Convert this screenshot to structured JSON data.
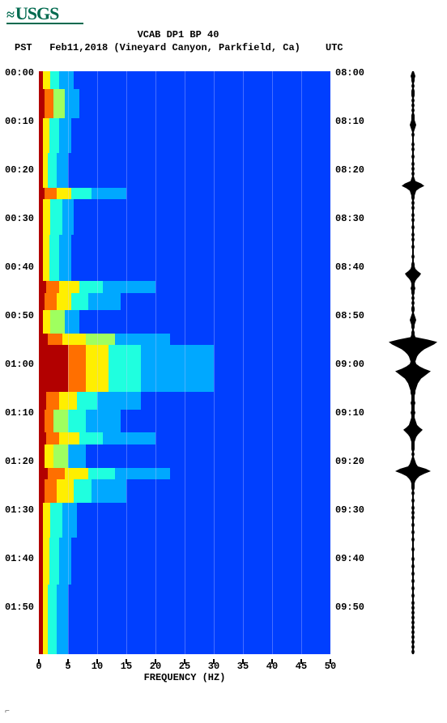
{
  "logo_text": "USGS",
  "title": "VCAB DP1 BP 40",
  "subtitle_pst": "PST",
  "subtitle_date": "Feb11,2018 (Vineyard Canyon, Parkfield, Ca)",
  "subtitle_utc": "UTC",
  "x_axis_title": "FREQUENCY (HZ)",
  "x_ticks": [
    "0",
    "5",
    "10",
    "15",
    "20",
    "25",
    "30",
    "35",
    "40",
    "45",
    "50"
  ],
  "left_ticks": [
    "00:00",
    "00:10",
    "00:20",
    "00:30",
    "00:40",
    "00:50",
    "01:00",
    "01:10",
    "01:20",
    "01:30",
    "01:40",
    "01:50"
  ],
  "right_ticks": [
    "08:00",
    "08:10",
    "08:20",
    "08:30",
    "08:40",
    "08:50",
    "09:00",
    "09:10",
    "09:20",
    "09:30",
    "09:40",
    "09:50"
  ],
  "colors": {
    "bg": "#0000d0",
    "c0": "#0000d0",
    "c1": "#003fff",
    "c2": "#00a8ff",
    "c3": "#1fffdf",
    "c4": "#9fff5f",
    "c5": "#ffef00",
    "c6": "#ff6f00",
    "c7": "#b20000"
  },
  "grid_x_positions_pct": [
    10,
    20,
    30,
    40,
    50,
    60,
    70,
    80,
    90
  ],
  "heat_rows": [
    {
      "top_pct": 0,
      "h_pct": 3,
      "segs": [
        [
          0,
          1.5,
          "c7"
        ],
        [
          1.5,
          4,
          "c5"
        ],
        [
          4,
          7,
          "c3"
        ],
        [
          7,
          12,
          "c2"
        ],
        [
          12,
          100,
          "c1"
        ]
      ]
    },
    {
      "top_pct": 3,
      "h_pct": 5,
      "segs": [
        [
          0,
          2,
          "c7"
        ],
        [
          2,
          5,
          "c6"
        ],
        [
          5,
          9,
          "c4"
        ],
        [
          9,
          14,
          "c2"
        ],
        [
          14,
          100,
          "c1"
        ]
      ]
    },
    {
      "top_pct": 8,
      "h_pct": 6,
      "segs": [
        [
          0,
          1.5,
          "c7"
        ],
        [
          1.5,
          3.5,
          "c5"
        ],
        [
          3.5,
          7,
          "c3"
        ],
        [
          7,
          11,
          "c2"
        ],
        [
          11,
          100,
          "c1"
        ]
      ]
    },
    {
      "top_pct": 14,
      "h_pct": 6,
      "segs": [
        [
          0,
          1.5,
          "c7"
        ],
        [
          1.5,
          3,
          "c5"
        ],
        [
          3,
          6,
          "c3"
        ],
        [
          6,
          10,
          "c2"
        ],
        [
          10,
          100,
          "c1"
        ]
      ]
    },
    {
      "top_pct": 20,
      "h_pct": 2,
      "segs": [
        [
          0,
          2,
          "c7"
        ],
        [
          2,
          6,
          "c6"
        ],
        [
          6,
          11,
          "c5"
        ],
        [
          11,
          18,
          "c3"
        ],
        [
          18,
          30,
          "c2"
        ],
        [
          30,
          50,
          "c1"
        ],
        [
          50,
          100,
          "c1"
        ]
      ]
    },
    {
      "top_pct": 22,
      "h_pct": 6,
      "segs": [
        [
          0,
          1.5,
          "c7"
        ],
        [
          1.5,
          4,
          "c5"
        ],
        [
          4,
          8,
          "c3"
        ],
        [
          8,
          12,
          "c2"
        ],
        [
          12,
          100,
          "c1"
        ]
      ]
    },
    {
      "top_pct": 28,
      "h_pct": 8,
      "segs": [
        [
          0,
          1.5,
          "c7"
        ],
        [
          1.5,
          3.5,
          "c5"
        ],
        [
          3.5,
          7,
          "c3"
        ],
        [
          7,
          11,
          "c2"
        ],
        [
          11,
          100,
          "c1"
        ]
      ]
    },
    {
      "top_pct": 36,
      "h_pct": 2,
      "segs": [
        [
          0,
          2.5,
          "c7"
        ],
        [
          2.5,
          7,
          "c6"
        ],
        [
          7,
          14,
          "c5"
        ],
        [
          14,
          22,
          "c3"
        ],
        [
          22,
          40,
          "c2"
        ],
        [
          40,
          100,
          "c1"
        ]
      ]
    },
    {
      "top_pct": 38,
      "h_pct": 3,
      "segs": [
        [
          0,
          2,
          "c7"
        ],
        [
          2,
          6,
          "c6"
        ],
        [
          6,
          11,
          "c5"
        ],
        [
          11,
          17,
          "c3"
        ],
        [
          17,
          28,
          "c2"
        ],
        [
          28,
          100,
          "c1"
        ]
      ]
    },
    {
      "top_pct": 41,
      "h_pct": 4,
      "segs": [
        [
          0,
          1.5,
          "c7"
        ],
        [
          1.5,
          4,
          "c5"
        ],
        [
          4,
          9,
          "c4"
        ],
        [
          9,
          14,
          "c2"
        ],
        [
          14,
          100,
          "c1"
        ]
      ]
    },
    {
      "top_pct": 45,
      "h_pct": 2,
      "segs": [
        [
          0,
          3,
          "c7"
        ],
        [
          3,
          8,
          "c6"
        ],
        [
          8,
          16,
          "c5"
        ],
        [
          16,
          26,
          "c4"
        ],
        [
          26,
          45,
          "c2"
        ],
        [
          45,
          100,
          "c1"
        ]
      ]
    },
    {
      "top_pct": 47,
      "h_pct": 8,
      "segs": [
        [
          0,
          4,
          "c7"
        ],
        [
          4,
          10,
          "c7"
        ],
        [
          10,
          16,
          "c6"
        ],
        [
          16,
          24,
          "c5"
        ],
        [
          24,
          35,
          "c3"
        ],
        [
          35,
          60,
          "c2"
        ],
        [
          60,
          100,
          "c1"
        ]
      ]
    },
    {
      "top_pct": 55,
      "h_pct": 3,
      "segs": [
        [
          0,
          2.5,
          "c7"
        ],
        [
          2.5,
          7,
          "c6"
        ],
        [
          7,
          13,
          "c5"
        ],
        [
          13,
          20,
          "c3"
        ],
        [
          20,
          35,
          "c2"
        ],
        [
          35,
          100,
          "c1"
        ]
      ]
    },
    {
      "top_pct": 58,
      "h_pct": 4,
      "segs": [
        [
          0,
          2,
          "c7"
        ],
        [
          2,
          5,
          "c6"
        ],
        [
          5,
          10,
          "c4"
        ],
        [
          10,
          16,
          "c3"
        ],
        [
          16,
          28,
          "c2"
        ],
        [
          28,
          100,
          "c1"
        ]
      ]
    },
    {
      "top_pct": 62,
      "h_pct": 2,
      "segs": [
        [
          0,
          2.5,
          "c7"
        ],
        [
          2.5,
          7,
          "c6"
        ],
        [
          7,
          14,
          "c5"
        ],
        [
          14,
          22,
          "c3"
        ],
        [
          22,
          40,
          "c2"
        ],
        [
          40,
          100,
          "c1"
        ]
      ]
    },
    {
      "top_pct": 64,
      "h_pct": 4,
      "segs": [
        [
          0,
          2,
          "c7"
        ],
        [
          2,
          5,
          "c5"
        ],
        [
          5,
          10,
          "c4"
        ],
        [
          10,
          16,
          "c2"
        ],
        [
          16,
          100,
          "c1"
        ]
      ]
    },
    {
      "top_pct": 68,
      "h_pct": 2,
      "segs": [
        [
          0,
          3,
          "c7"
        ],
        [
          3,
          9,
          "c6"
        ],
        [
          9,
          17,
          "c5"
        ],
        [
          17,
          26,
          "c3"
        ],
        [
          26,
          45,
          "c2"
        ],
        [
          45,
          100,
          "c1"
        ]
      ]
    },
    {
      "top_pct": 70,
      "h_pct": 4,
      "segs": [
        [
          0,
          2,
          "c7"
        ],
        [
          2,
          6,
          "c6"
        ],
        [
          6,
          12,
          "c5"
        ],
        [
          12,
          18,
          "c3"
        ],
        [
          18,
          30,
          "c2"
        ],
        [
          30,
          100,
          "c1"
        ]
      ]
    },
    {
      "top_pct": 74,
      "h_pct": 6,
      "segs": [
        [
          0,
          1.5,
          "c7"
        ],
        [
          1.5,
          4,
          "c5"
        ],
        [
          4,
          8,
          "c3"
        ],
        [
          8,
          13,
          "c2"
        ],
        [
          13,
          100,
          "c1"
        ]
      ]
    },
    {
      "top_pct": 80,
      "h_pct": 8,
      "segs": [
        [
          0,
          1.5,
          "c7"
        ],
        [
          1.5,
          3.5,
          "c5"
        ],
        [
          3.5,
          7,
          "c3"
        ],
        [
          7,
          11,
          "c2"
        ],
        [
          11,
          100,
          "c1"
        ]
      ]
    },
    {
      "top_pct": 88,
      "h_pct": 12,
      "segs": [
        [
          0,
          1.5,
          "c7"
        ],
        [
          1.5,
          3,
          "c5"
        ],
        [
          3,
          6,
          "c3"
        ],
        [
          6,
          10,
          "c2"
        ],
        [
          10,
          100,
          "c1"
        ]
      ]
    }
  ],
  "seismogram_envelope": [
    1,
    2,
    3,
    2,
    2,
    1,
    2,
    1,
    2,
    2,
    2,
    1,
    2,
    1,
    2,
    1,
    2,
    1,
    2,
    2,
    2,
    3,
    4,
    3,
    2,
    1,
    2,
    1,
    1,
    1,
    2,
    1,
    2,
    1,
    1,
    2,
    1,
    1,
    2,
    1,
    2,
    1,
    2,
    1,
    2,
    3,
    10,
    14,
    8,
    4,
    3,
    2,
    2,
    1,
    2,
    1,
    2,
    1,
    1,
    2,
    1,
    2,
    1,
    1,
    2,
    1,
    1,
    2,
    1,
    2,
    1,
    1,
    2,
    1,
    1,
    1,
    2,
    1,
    1,
    2,
    2,
    3,
    6,
    10,
    8,
    5,
    3,
    2,
    2,
    3,
    2,
    2,
    1,
    2,
    1,
    2,
    1,
    2,
    2,
    1,
    2,
    3,
    4,
    3,
    2,
    2,
    1,
    2,
    2,
    3,
    18,
    30,
    26,
    20,
    14,
    10,
    7,
    5,
    4,
    3,
    4,
    8,
    14,
    22,
    18,
    14,
    10,
    8,
    6,
    5,
    4,
    3,
    3,
    2,
    2,
    2,
    3,
    2,
    2,
    2,
    3,
    2,
    2,
    3,
    4,
    5,
    8,
    12,
    9,
    6,
    4,
    3,
    2,
    2,
    2,
    2,
    1,
    2,
    1,
    2,
    3,
    4,
    6,
    16,
    22,
    14,
    8,
    5,
    3,
    2,
    2,
    2,
    1,
    2,
    1,
    1,
    2,
    1,
    1,
    2,
    1,
    2,
    1,
    2,
    1,
    1,
    2,
    1,
    1,
    2,
    1,
    1,
    2,
    1,
    1,
    1,
    2,
    1,
    1,
    1,
    2,
    1,
    1,
    2,
    1,
    1,
    2,
    1,
    1,
    2,
    1,
    1,
    2,
    1,
    1,
    2,
    1,
    1,
    2,
    1,
    2,
    1,
    2,
    1,
    2,
    1,
    2,
    1,
    2,
    1,
    2,
    1,
    2,
    1,
    2,
    1,
    2,
    1,
    2,
    1
  ]
}
